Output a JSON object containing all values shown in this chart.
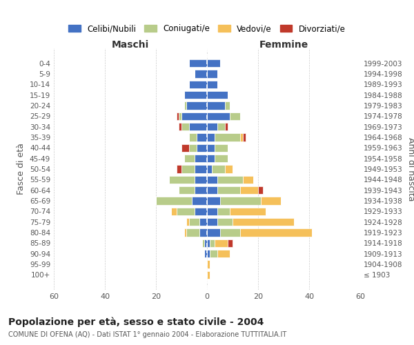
{
  "age_groups": [
    "100+",
    "95-99",
    "90-94",
    "85-89",
    "80-84",
    "75-79",
    "70-74",
    "65-69",
    "60-64",
    "55-59",
    "50-54",
    "45-49",
    "40-44",
    "35-39",
    "30-34",
    "25-29",
    "20-24",
    "15-19",
    "10-14",
    "5-9",
    "0-4"
  ],
  "birth_years": [
    "≤ 1903",
    "1904-1908",
    "1909-1913",
    "1914-1918",
    "1919-1923",
    "1924-1928",
    "1929-1933",
    "1934-1938",
    "1939-1943",
    "1944-1948",
    "1949-1953",
    "1954-1958",
    "1959-1963",
    "1964-1968",
    "1969-1973",
    "1974-1978",
    "1979-1983",
    "1984-1988",
    "1989-1993",
    "1994-1998",
    "1999-2003"
  ],
  "colors": {
    "celibe": "#4472C4",
    "coniugato": "#B8CC8A",
    "vedovo": "#F5C05A",
    "divorziato": "#C0392B"
  },
  "maschi": {
    "celibe": [
      0,
      0,
      1,
      1,
      3,
      3,
      5,
      6,
      5,
      5,
      5,
      5,
      4,
      4,
      7,
      10,
      8,
      9,
      7,
      5,
      7
    ],
    "coniugato": [
      0,
      0,
      0,
      1,
      5,
      4,
      7,
      14,
      6,
      10,
      5,
      4,
      3,
      3,
      3,
      1,
      1,
      0,
      0,
      0,
      0
    ],
    "vedovo": [
      0,
      0,
      0,
      0,
      1,
      1,
      2,
      0,
      0,
      0,
      0,
      0,
      0,
      0,
      0,
      0,
      0,
      0,
      0,
      0,
      0
    ],
    "divorziato": [
      0,
      0,
      0,
      0,
      0,
      0,
      0,
      0,
      0,
      0,
      2,
      0,
      3,
      0,
      1,
      1,
      0,
      0,
      0,
      0,
      0
    ]
  },
  "femmine": {
    "celibe": [
      0,
      0,
      1,
      1,
      5,
      4,
      4,
      5,
      4,
      4,
      2,
      3,
      3,
      3,
      4,
      9,
      7,
      8,
      4,
      4,
      5
    ],
    "coniugato": [
      0,
      0,
      3,
      2,
      8,
      6,
      5,
      16,
      9,
      10,
      5,
      5,
      5,
      10,
      3,
      4,
      2,
      0,
      0,
      0,
      0
    ],
    "vedovo": [
      1,
      1,
      5,
      5,
      28,
      24,
      14,
      8,
      7,
      4,
      3,
      0,
      0,
      1,
      0,
      0,
      0,
      0,
      0,
      0,
      0
    ],
    "divorziato": [
      0,
      0,
      0,
      2,
      0,
      0,
      0,
      0,
      2,
      0,
      0,
      0,
      0,
      1,
      1,
      0,
      0,
      0,
      0,
      0,
      0
    ]
  },
  "title": "Popolazione per età, sesso e stato civile - 2004",
  "subtitle": "COMUNE DI OFENA (AQ) - Dati ISTAT 1° gennaio 2004 - Elaborazione TUTTITALIA.IT",
  "xlabel_left": "Maschi",
  "xlabel_right": "Femmine",
  "ylabel_left": "Fasce di età",
  "ylabel_right": "Anni di nascita",
  "legend_labels": [
    "Celibi/Nubili",
    "Coniugati/e",
    "Vedovi/e",
    "Divorziati/e"
  ],
  "xlim": 60,
  "background_color": "#ffffff"
}
